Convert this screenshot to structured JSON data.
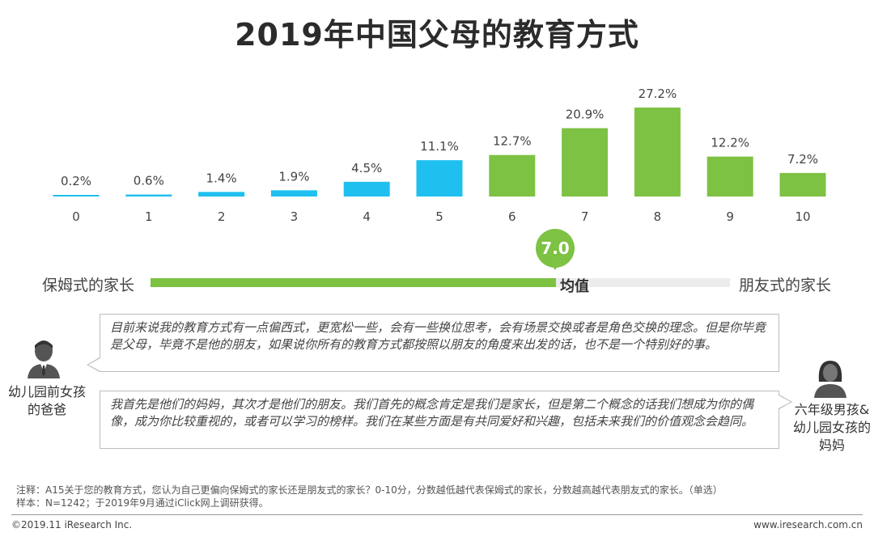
{
  "title": "2019年中国父母的教育方式",
  "chart_data": {
    "type": "bar",
    "title": "2019年中国父母的教育方式",
    "categories": [
      "0",
      "1",
      "2",
      "3",
      "4",
      "5",
      "6",
      "7",
      "8",
      "9",
      "10"
    ],
    "values": [
      0.2,
      0.6,
      1.4,
      1.9,
      4.5,
      11.1,
      12.7,
      20.9,
      27.2,
      12.2,
      7.2
    ],
    "value_labels": [
      "0.2%",
      "0.6%",
      "1.4%",
      "1.9%",
      "4.5%",
      "11.1%",
      "12.7%",
      "20.9%",
      "27.2%",
      "12.2%",
      "7.2%"
    ],
    "unit": "%",
    "ylim": [
      0,
      27.2
    ],
    "xlabel": "",
    "ylabel": "",
    "grid": false,
    "colors": {
      "low": "#1fc0ef",
      "high": "#7dc243"
    },
    "color_split_index": 6
  },
  "scale": {
    "left_label": "保姆式的家长",
    "right_label": "朋友式的家长",
    "mean_value": "7.0",
    "mean_label": "均值",
    "mean_fraction": 0.7
  },
  "quotes": [
    {
      "text": "目前来说我的教育方式有一点偏西式，更宽松一些，会有一些换位思考，会有场景交换或者是角色交换的理念。但是你毕竟是父母，毕竟不是他的朋友，如果说你所有的教育方式都按照以朋友的角度来出发的话，也不是一个特别好的事。"
    },
    {
      "text": "我首先是他们的妈妈，其次才是他们的朋友。我们首先的概念肯定是我们是家长，但是第二个概念的话我们想成为你的偶像，成为你比较重视的，或者可以学习的榜样。我们在某些方面是有共同爱好和兴趣，包括未来我们的价值观念会趋同。"
    }
  ],
  "speakers": {
    "dad": "幼儿园前女孩的爸爸",
    "mom": "六年级男孩&幼儿园女孩的妈妈"
  },
  "footer": {
    "note_line1": "注释：A15关于您的教育方式，您认为自己更偏向保姆式的家长还是朋友式的家长？0-10分，分数越低越代表保姆式的家长，分数越高越代表朋友式的家长。（单选）",
    "note_line2": "样本：N=1242；于2019年9月通过iClick网上调研获得。",
    "copyright": "©2019.11 iResearch Inc.",
    "website": "www.iresearch.com.cn"
  }
}
